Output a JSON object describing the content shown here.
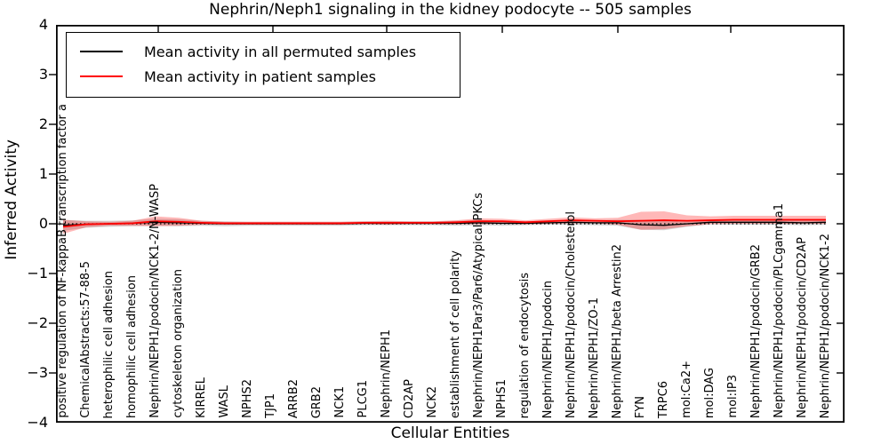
{
  "chart_data": {
    "type": "line",
    "title": "Nephrin/Neph1 signaling in the kidney podocyte -- 505 samples",
    "xlabel": "Cellular Entities",
    "ylabel": "Inferred Activity",
    "grid": false,
    "legend_position": "upper-left",
    "axis": {
      "ylim": [
        -4,
        4
      ],
      "yticks": [
        4,
        3,
        2,
        1,
        0,
        -1,
        -2,
        -3,
        -4
      ],
      "ytick_labels": [
        "4",
        "3",
        "2",
        "1",
        "0",
        "−1",
        "−2",
        "−3",
        "−4"
      ],
      "top_tick_x": [
        115,
        244,
        372,
        502,
        632,
        759
      ]
    },
    "zero_line": {
      "y": 0,
      "style": "dotted",
      "color": "#000000"
    },
    "categories": [
      "positive regulation of NF-kappaB transcription factor a",
      "ChemicalAbstracts:57-88-5",
      "heterophilic cell adhesion",
      "homophilic cell adhesion",
      "Nephrin/NEPH1/podocin/NCK1-2/N-WASP",
      "cytoskeleton organization",
      "KIRREL",
      "WASL",
      "NPHS2",
      "TJP1",
      "ARRB2",
      "GRB2",
      "NCK1",
      "PLCG1",
      "Nephrin/NEPH1",
      "CD2AP",
      "NCK2",
      "establishment of cell polarity",
      "Nephrin/NEPH1Par3/Par6/Atypical PKCs",
      "NPHS1",
      "regulation of endocytosis",
      "Nephrin/NEPH1/podocin",
      "Nephrin/NEPH1/podocin/Cholesterol",
      "Nephrin/NEPH1/ZO-1",
      "Nephrin/NEPH1/beta Arrestin2",
      "FYN",
      "TRPC6",
      "mol:Ca2+",
      "mol:DAG",
      "mol:IP3",
      "Nephrin/NEPH1/podocin/GRB2",
      "Nephrin/NEPH1/podocin/PLCgamma1",
      "Nephrin/NEPH1/podocin/CD2AP",
      "Nephrin/NEPH1/podocin/NCK1-2"
    ],
    "legend": [
      {
        "label": "Mean activity in all permuted samples",
        "color": "#000000"
      },
      {
        "label": "Mean activity in patient samples",
        "color": "#ff0000"
      }
    ],
    "series": [
      {
        "name": "Mean activity in all permuted samples",
        "color": "#000000",
        "width": 1.3,
        "values": [
          -0.03,
          -0.01,
          0.0,
          0.01,
          0.03,
          0.02,
          0.01,
          0.0,
          0.0,
          0.0,
          0.0,
          0.0,
          0.0,
          0.01,
          0.01,
          0.01,
          0.01,
          0.01,
          0.02,
          0.01,
          0.01,
          0.02,
          0.03,
          0.02,
          0.02,
          -0.02,
          -0.03,
          0.0,
          0.03,
          0.03,
          0.03,
          0.03,
          0.02,
          0.03
        ]
      },
      {
        "name": "Mean activity in patient samples",
        "color": "#ff0000",
        "width": 1.8,
        "values": [
          -0.06,
          -0.01,
          0.0,
          0.01,
          0.05,
          0.04,
          0.02,
          0.01,
          0.01,
          0.01,
          0.01,
          0.01,
          0.01,
          0.02,
          0.02,
          0.02,
          0.02,
          0.03,
          0.05,
          0.05,
          0.03,
          0.05,
          0.07,
          0.06,
          0.05,
          0.06,
          0.07,
          0.06,
          0.07,
          0.08,
          0.08,
          0.08,
          0.08,
          0.08
        ]
      }
    ],
    "bands": [
      {
        "name": "permuted-samples-band",
        "color": "rgba(120,120,120,0.30)",
        "upper": [
          0.08,
          0.06,
          0.06,
          0.07,
          0.1,
          0.09,
          0.06,
          0.05,
          0.04,
          0.04,
          0.04,
          0.04,
          0.04,
          0.05,
          0.05,
          0.05,
          0.05,
          0.06,
          0.07,
          0.06,
          0.05,
          0.06,
          0.08,
          0.07,
          0.08,
          0.08,
          0.07,
          0.06,
          0.07,
          0.08,
          0.08,
          0.08,
          0.07,
          0.08
        ],
        "lower": [
          -0.14,
          -0.08,
          -0.06,
          -0.05,
          -0.04,
          -0.05,
          -0.04,
          -0.05,
          -0.04,
          -0.04,
          -0.04,
          -0.04,
          -0.04,
          -0.03,
          -0.03,
          -0.03,
          -0.03,
          -0.04,
          -0.03,
          -0.04,
          -0.03,
          -0.02,
          -0.02,
          -0.03,
          -0.04,
          -0.12,
          -0.13,
          -0.06,
          -0.01,
          -0.02,
          -0.02,
          -0.02,
          -0.03,
          -0.02
        ]
      },
      {
        "name": "patient-samples-band",
        "color": "rgba(255,0,0,0.28)",
        "upper": [
          0.08,
          0.05,
          0.04,
          0.06,
          0.15,
          0.12,
          0.06,
          0.04,
          0.04,
          0.04,
          0.04,
          0.04,
          0.04,
          0.05,
          0.06,
          0.05,
          0.05,
          0.07,
          0.11,
          0.1,
          0.07,
          0.1,
          0.13,
          0.11,
          0.12,
          0.24,
          0.25,
          0.17,
          0.15,
          0.16,
          0.16,
          0.16,
          0.16,
          0.16
        ],
        "lower": [
          -0.2,
          -0.07,
          -0.04,
          -0.04,
          -0.05,
          -0.04,
          -0.02,
          -0.02,
          -0.02,
          -0.02,
          -0.02,
          -0.02,
          -0.02,
          -0.01,
          -0.02,
          -0.01,
          -0.01,
          -0.01,
          -0.01,
          0.0,
          -0.01,
          0.0,
          0.01,
          0.01,
          -0.02,
          -0.12,
          -0.11,
          -0.05,
          -0.01,
          0.0,
          0.0,
          0.0,
          0.0,
          0.0
        ]
      }
    ]
  }
}
